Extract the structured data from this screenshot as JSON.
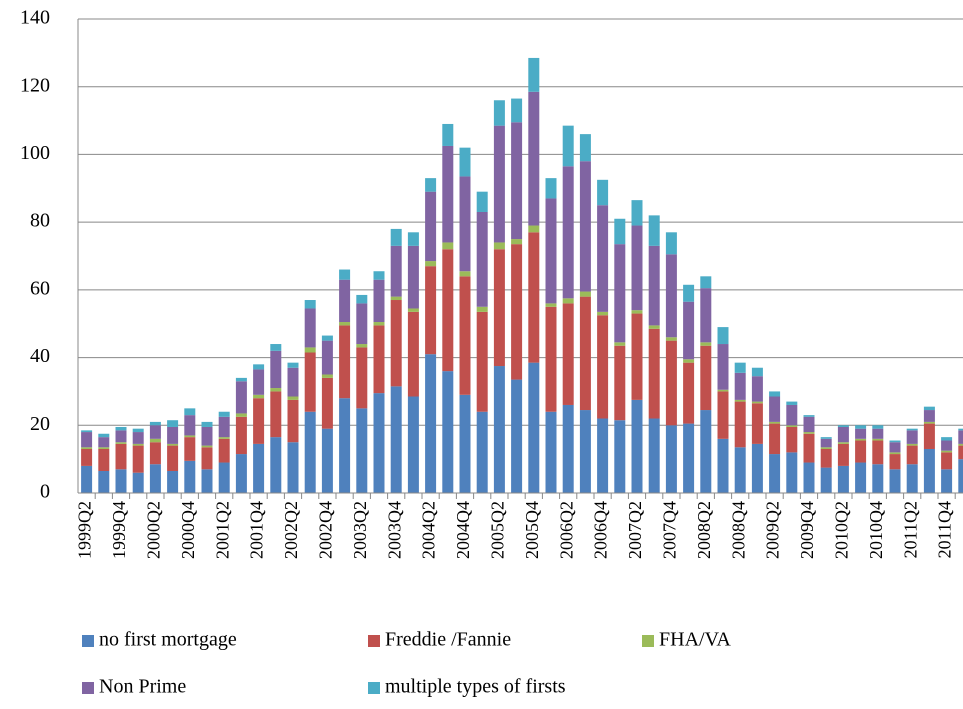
{
  "chart_data": {
    "type": "stacked-bar",
    "categories": [
      "1999Q2",
      null,
      "1999Q4",
      null,
      "2000Q2",
      null,
      "2000Q4",
      null,
      "2001Q2",
      null,
      "2001Q4",
      null,
      "2002Q2",
      null,
      "2002Q4",
      null,
      "2003Q2",
      null,
      "2003Q4",
      null,
      "2004Q2",
      null,
      "2004Q4",
      null,
      "2005Q2",
      null,
      "2005Q4",
      null,
      "2006Q2",
      null,
      "2006Q4",
      null,
      "2007Q2",
      null,
      "2007Q4",
      null,
      "2008Q2",
      null,
      "2008Q4",
      null,
      "2009Q2",
      null,
      "2009Q4",
      null,
      "2010Q2",
      null,
      "2010Q4",
      null,
      "2011Q2",
      null,
      "2011Q4",
      null
    ],
    "series": [
      {
        "name": "no first mortgage",
        "color": "#4f81bd",
        "values": [
          8,
          6.5,
          7,
          6,
          8.5,
          6.5,
          9.5,
          7,
          9,
          11.5,
          14.5,
          16.5,
          15,
          24,
          19,
          28,
          25,
          29.5,
          31.5,
          28.5,
          41,
          36,
          29,
          24,
          37.5,
          33.5,
          38.5,
          24,
          26,
          24.5,
          22,
          21.5,
          27.5,
          22,
          20,
          20.5,
          24.5,
          16,
          13.5,
          14.5,
          11.5,
          12,
          9,
          7.5,
          8,
          9,
          8.5,
          7,
          8.5,
          13,
          7,
          10
        ]
      },
      {
        "name": "Freddie /Fannie",
        "color": "#c0504d",
        "values": [
          5,
          6.5,
          7.5,
          8,
          6.5,
          7.5,
          7,
          6.5,
          7,
          11,
          13.5,
          13.5,
          12.5,
          17.5,
          15,
          21.5,
          18,
          20,
          25.5,
          25,
          26,
          36,
          35,
          29.5,
          34.5,
          40,
          38.5,
          31,
          30,
          33.5,
          30.5,
          22,
          25.5,
          26.5,
          25,
          18,
          19,
          14,
          13.5,
          12,
          9,
          7.5,
          8.5,
          5.5,
          6.5,
          6.5,
          7,
          4.5,
          5.5,
          7.5,
          5,
          4
        ]
      },
      {
        "name": "FHA/VA",
        "color": "#9bbb59",
        "values": [
          0.5,
          0.5,
          0.5,
          0.5,
          1,
          0.5,
          0.5,
          0.5,
          0.5,
          1,
          1,
          1,
          1,
          1.5,
          1,
          1,
          1,
          1,
          1,
          1,
          1.5,
          2,
          1.5,
          1.5,
          2,
          1.5,
          2,
          1,
          1.5,
          1.5,
          1,
          1,
          1,
          1,
          1,
          1,
          1,
          0.5,
          0.5,
          0.5,
          0.5,
          0.5,
          0.5,
          0.5,
          0.5,
          0.5,
          0.5,
          0.5,
          0.5,
          0.5,
          0.5,
          0.5
        ]
      },
      {
        "name": "Non Prime",
        "color": "#8064a2",
        "values": [
          4.5,
          3,
          3.5,
          3.5,
          4,
          5,
          6,
          5.5,
          6,
          9.5,
          7.5,
          11,
          8.5,
          11.5,
          10,
          12.5,
          12,
          12.5,
          15,
          18.5,
          20.5,
          28.5,
          28,
          28,
          34.5,
          34.5,
          39.5,
          31,
          39,
          38.5,
          31.5,
          29,
          25,
          23.5,
          24.5,
          17,
          16,
          13.5,
          8,
          7.5,
          7.5,
          6,
          4.5,
          2.5,
          4.5,
          3,
          3,
          3,
          4,
          3.5,
          3,
          4
        ]
      },
      {
        "name": "multiple types of firsts",
        "color": "#4bacc6",
        "values": [
          0.5,
          1,
          1,
          1,
          1,
          2,
          2,
          1.5,
          1.5,
          1,
          1.5,
          2,
          1.5,
          2.5,
          1.5,
          3,
          2.5,
          2.5,
          5,
          4,
          4,
          6.5,
          8.5,
          6,
          7.5,
          7,
          10,
          6,
          12,
          8,
          7.5,
          7.5,
          7.5,
          9,
          6.5,
          5,
          3.5,
          5,
          3,
          2.5,
          1.5,
          1,
          0.5,
          0.5,
          0.5,
          1,
          1,
          0.5,
          0.5,
          1,
          1,
          0.5
        ]
      }
    ],
    "ylim": [
      0,
      140
    ],
    "yticks": [
      0,
      20,
      40,
      60,
      80,
      100,
      120,
      140
    ],
    "grid": true
  }
}
